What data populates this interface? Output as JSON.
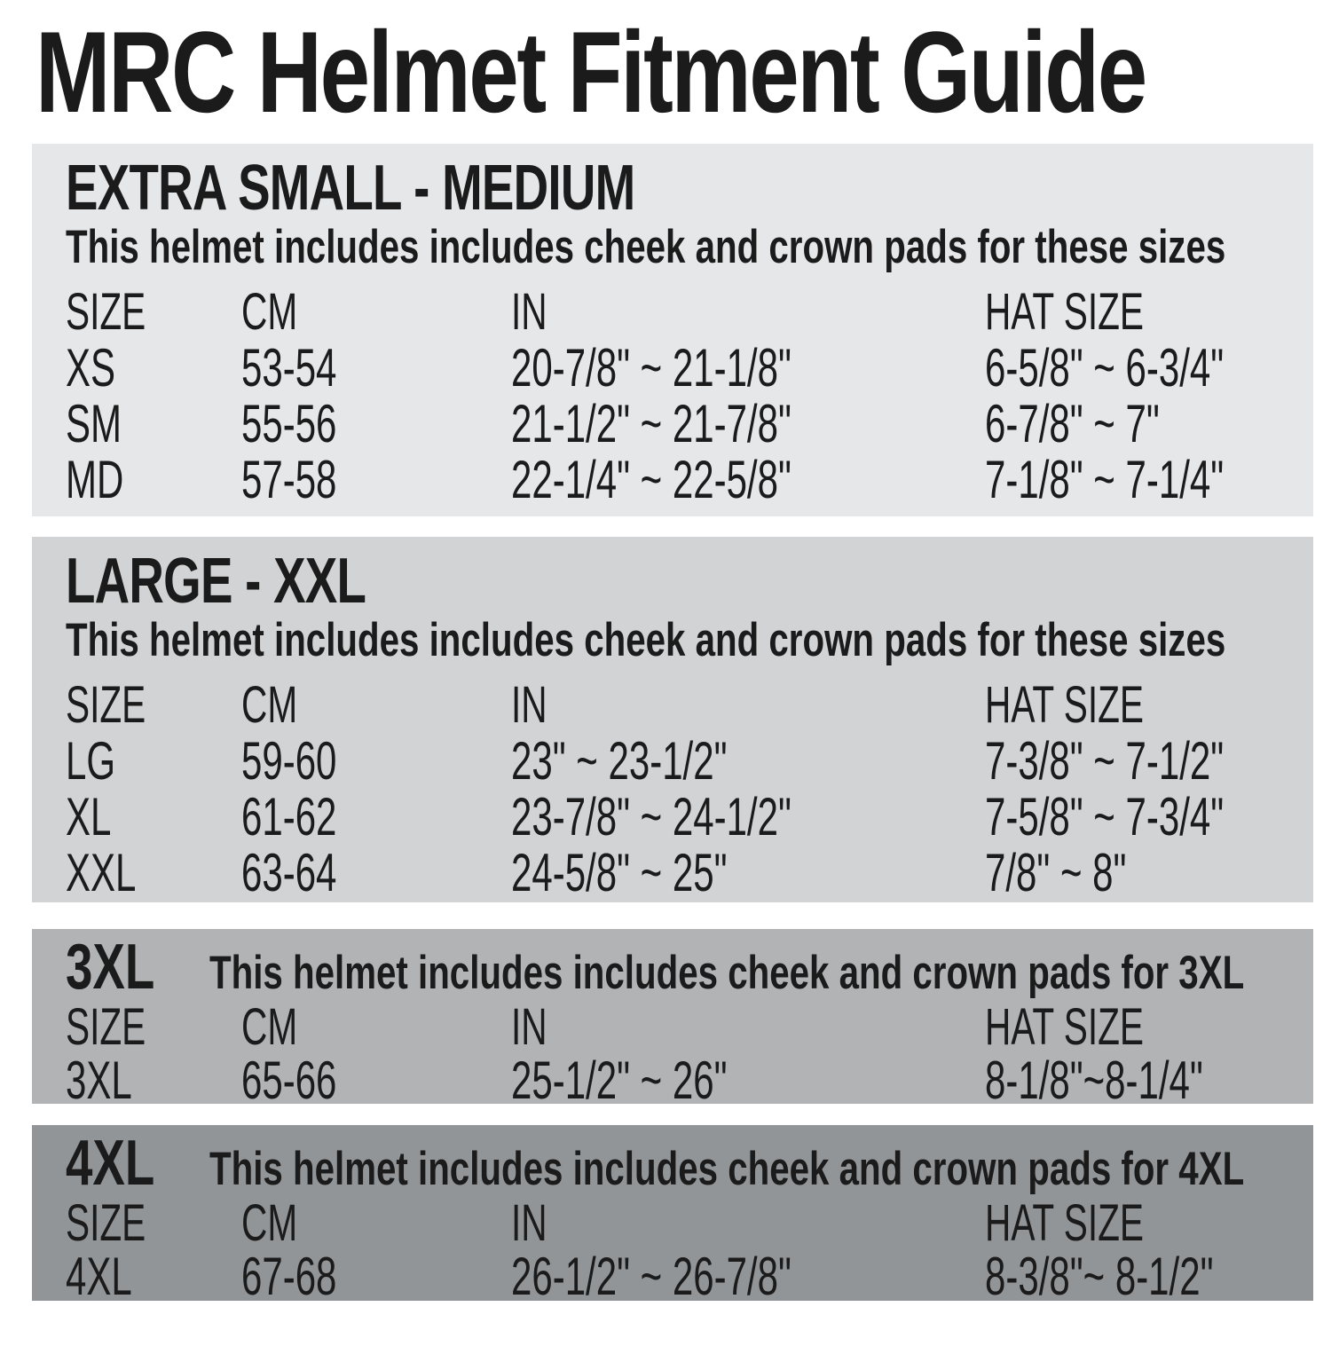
{
  "page": {
    "title": "MRC Helmet Fitment Guide"
  },
  "columns": [
    "SIZE",
    "CM",
    "IN",
    "HAT SIZE"
  ],
  "colors": {
    "page_bg": "#ffffff",
    "text": "#1b1b1b",
    "section1_bg": "#e6e7e8",
    "section2_bg": "#d1d3d4",
    "section3_bg": "#b1b3b4",
    "section4_bg": "#919598"
  },
  "sections": [
    {
      "title": "EXTRA SMALL - MEDIUM",
      "subtitle": "This helmet includes includes cheek and crown pads for these sizes",
      "rows": [
        {
          "size": "XS",
          "cm": "53-54",
          "inches": "20-7/8\" ~ 21-1/8\"",
          "hat": "6-5/8\" ~ 6-3/4\""
        },
        {
          "size": "SM",
          "cm": "55-56",
          "inches": "21-1/2\" ~ 21-7/8\"",
          "hat": "6-7/8\" ~ 7\""
        },
        {
          "size": "MD",
          "cm": "57-58",
          "inches": "22-1/4\" ~ 22-5/8\"",
          "hat": "7-1/8\" ~ 7-1/4\""
        }
      ]
    },
    {
      "title": "LARGE - XXL",
      "subtitle": "This helmet includes includes cheek and crown pads for these sizes",
      "rows": [
        {
          "size": "LG",
          "cm": "59-60",
          "inches": "23\" ~ 23-1/2\"",
          "hat": "7-3/8\" ~ 7-1/2\""
        },
        {
          "size": "XL",
          "cm": "61-62",
          "inches": "23-7/8\" ~ 24-1/2\"",
          "hat": "7-5/8\" ~ 7-3/4\""
        },
        {
          "size": "XXL",
          "cm": "63-64",
          "inches": "24-5/8\" ~ 25\"",
          "hat": "7/8\" ~ 8\""
        }
      ]
    },
    {
      "title": "3XL",
      "subtitle": "This helmet includes includes cheek and crown pads for 3XL",
      "rows": [
        {
          "size": "3XL",
          "cm": "65-66",
          "inches": "25-1/2\" ~ 26\"",
          "hat": "8-1/8\"~8-1/4\""
        }
      ]
    },
    {
      "title": "4XL",
      "subtitle": "This helmet includes includes cheek and crown pads for 4XL",
      "rows": [
        {
          "size": "4XL",
          "cm": "67-68",
          "inches": "26-1/2\" ~ 26-7/8\"",
          "hat": "8-3/8\"~ 8-1/2\""
        }
      ]
    }
  ]
}
